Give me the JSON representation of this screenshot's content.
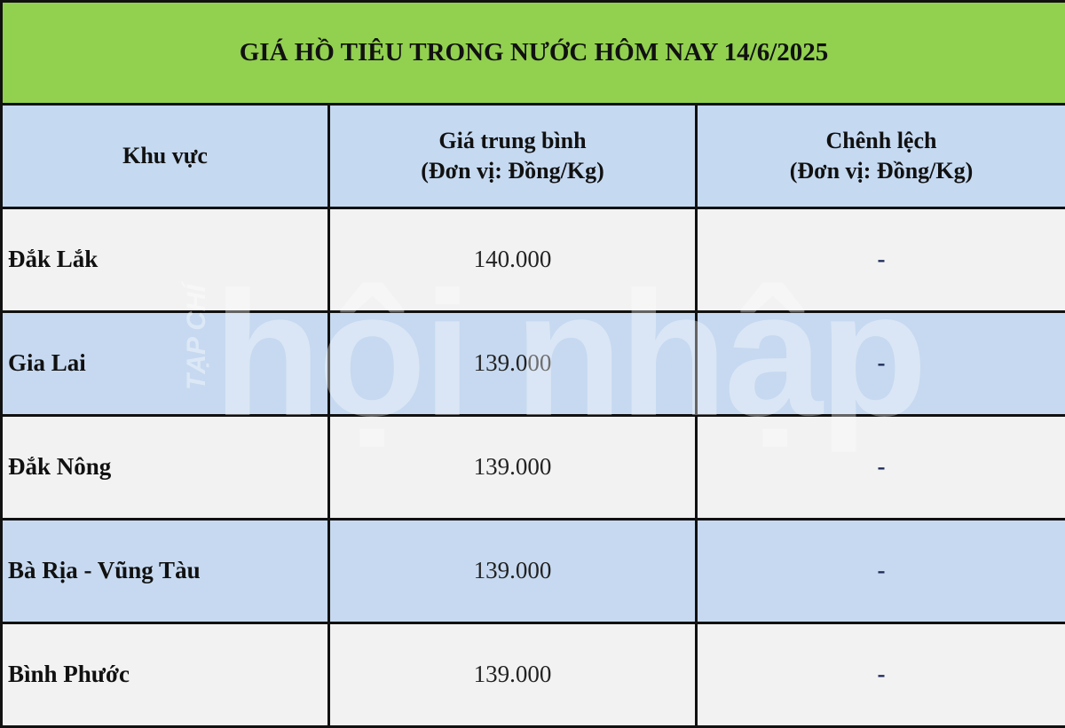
{
  "title": "GIÁ HỒ TIÊU TRONG NƯỚC HÔM NAY 14/6/2025",
  "headers": {
    "region": "Khu vực",
    "price_line1": "Giá trung bình",
    "price_line2": "(Đơn vị: Đồng/Kg)",
    "diff_line1": "Chênh lệch",
    "diff_line2": "(Đơn vị: Đồng/Kg)"
  },
  "rows": [
    {
      "region": "Đắk Lắk",
      "price": "140.000",
      "diff": "-"
    },
    {
      "region": "Gia Lai",
      "price": "139.000",
      "diff": "-"
    },
    {
      "region": "Đắk Nông",
      "price": "139.000",
      "diff": "-"
    },
    {
      "region": "Bà Rịa - Vũng Tàu",
      "price": "139.000",
      "diff": "-"
    },
    {
      "region": "Bình Phước",
      "price": "139.000",
      "diff": "-"
    }
  ],
  "watermark": {
    "small": "TẠP CHÍ",
    "large": "hội nhập"
  },
  "colors": {
    "title_bg": "#92d050",
    "header_bg": "#c5d9f1",
    "row_light": "#f2f2f2",
    "row_blue": "#c6d9f0"
  }
}
